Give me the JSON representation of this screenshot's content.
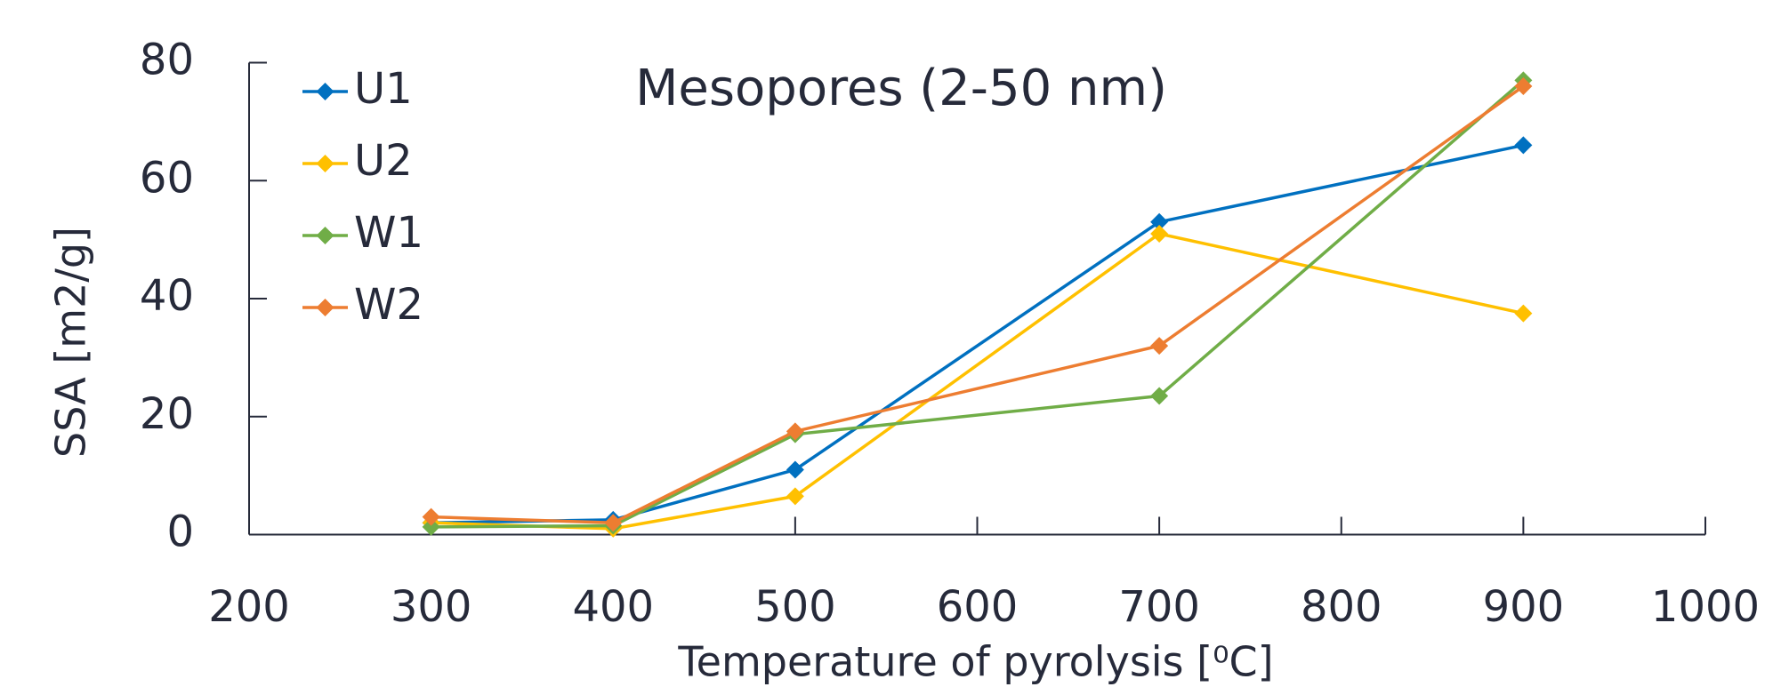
{
  "chart_data": {
    "type": "line",
    "title": "Mesopores (2-50 nm)",
    "x_label": "Temperature of pyrolysis [⁰C]",
    "y_label": "SSA [m2/g]",
    "x": [
      300,
      400,
      500,
      700,
      900
    ],
    "series": [
      {
        "name": "U1",
        "color": "#0070c0",
        "values": [
          2,
          2.5,
          11,
          53,
          66
        ]
      },
      {
        "name": "U2",
        "color": "#ffc000",
        "values": [
          2,
          1,
          6.5,
          51,
          37.5
        ]
      },
      {
        "name": "W1",
        "color": "#70ad47",
        "values": [
          1.3,
          1.5,
          17,
          23.5,
          77
        ]
      },
      {
        "name": "W2",
        "color": "#ed7d31",
        "values": [
          3,
          2,
          17.5,
          32,
          76
        ]
      }
    ],
    "xlim": [
      200,
      1000
    ],
    "xticks": [
      200,
      300,
      400,
      500,
      600,
      700,
      800,
      900,
      1000
    ],
    "ylim": [
      0,
      80
    ],
    "yticks": [
      0,
      20,
      40,
      60,
      80
    ],
    "grid": false,
    "legend": "top-left"
  }
}
